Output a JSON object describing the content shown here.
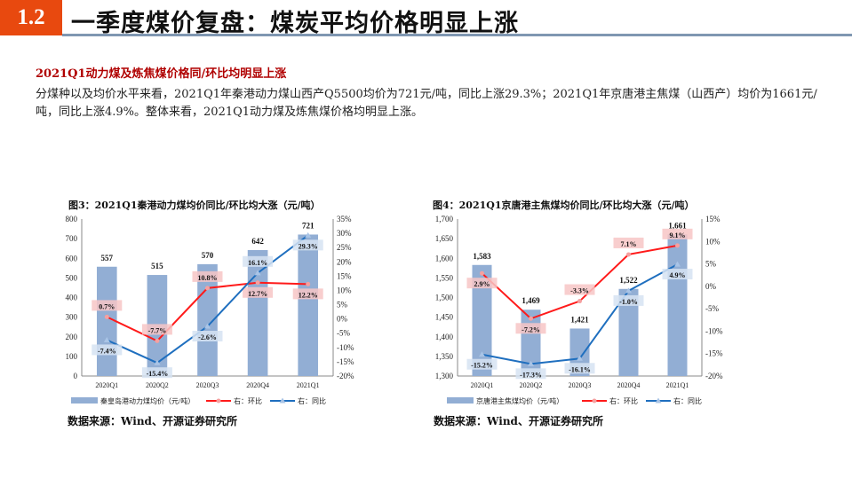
{
  "header": {
    "section_number": "1.2",
    "title": "一季度煤价复盘：煤炭平均价格明显上涨"
  },
  "subhead": "2021Q1动力煤及炼焦煤价格同/环比均明显上涨",
  "paragraph": "分煤种以及均价水平来看，2021Q1年秦港动力煤山西产Q5500均价为721元/吨，同比上涨29.3%；2021Q1年京唐港主焦煤（山西产）均价为1661元/吨，同比上涨4.9%。整体来看，2021Q1动力煤及炼焦煤价格均明显上涨。",
  "colors": {
    "accent": "#e8490f",
    "bar": "#92aed4",
    "mom_line": "#ff1a1a",
    "yoy_line": "#1f6fbf",
    "rule": "#7f97b2"
  },
  "chart_data": [
    {
      "type": "bar+line",
      "title": "图3：2021Q1秦港动力煤均价同比/环比均大涨（元/吨）",
      "categories": [
        "2020Q1",
        "2020Q2",
        "2020Q3",
        "2020Q4",
        "2021Q1"
      ],
      "left_axis": {
        "ylim": [
          0,
          800
        ],
        "ticks": [
          "0",
          "100",
          "200",
          "300",
          "400",
          "500",
          "600",
          "700",
          "800"
        ]
      },
      "right_axis": {
        "ylim": [
          -20,
          35
        ],
        "ticks": [
          "-20%",
          "-15%",
          "-10%",
          "-5%",
          "0%",
          "5%",
          "10%",
          "15%",
          "20%",
          "25%",
          "30%",
          "35%"
        ]
      },
      "series": [
        {
          "name": "秦皇岛港动力煤均价（元/吨）",
          "type": "bar",
          "axis": "left",
          "values": [
            557,
            515,
            570,
            642,
            721
          ],
          "labels": [
            "557",
            "515",
            "570",
            "642",
            "721"
          ]
        },
        {
          "name": "右：环比",
          "type": "line",
          "axis": "right",
          "values": [
            0.7,
            -7.7,
            10.8,
            12.7,
            12.2
          ],
          "labels": [
            "0.7%",
            "-7.7%",
            "10.8%",
            "12.7%",
            "12.2%"
          ]
        },
        {
          "name": "右：同比",
          "type": "line",
          "axis": "right",
          "values": [
            -7.4,
            -15.4,
            -2.6,
            16.1,
            29.3
          ],
          "labels": [
            "-7.4%",
            "-15.4%",
            "-2.6%",
            "16.1%",
            "29.3%"
          ]
        }
      ],
      "legend": "bottom",
      "source": "数据来源：Wind、开源证券研究所"
    },
    {
      "type": "bar+line",
      "title": "图4：2021Q1京唐港主焦煤均价同比/环比均大涨（元/吨）",
      "categories": [
        "2020Q1",
        "2020Q2",
        "2020Q3",
        "2020Q4",
        "2021Q1"
      ],
      "left_axis": {
        "ylim": [
          1300,
          1700
        ],
        "ticks": [
          "1,300",
          "1,350",
          "1,400",
          "1,450",
          "1,500",
          "1,550",
          "1,600",
          "1,650",
          "1,700"
        ]
      },
      "right_axis": {
        "ylim": [
          -20,
          15
        ],
        "ticks": [
          "-20%",
          "-15%",
          "-10%",
          "-5%",
          "0%",
          "5%",
          "10%",
          "15%"
        ]
      },
      "series": [
        {
          "name": "京唐港主焦煤均价（元/吨）",
          "type": "bar",
          "axis": "left",
          "values": [
            1583,
            1469,
            1421,
            1522,
            1661
          ],
          "labels": [
            "1,583",
            "1,469",
            "1,421",
            "1,522",
            "1,661"
          ]
        },
        {
          "name": "右：环比",
          "type": "line",
          "axis": "right",
          "values": [
            2.9,
            -7.2,
            -3.3,
            7.1,
            9.1
          ],
          "labels": [
            "2.9%",
            "-7.2%",
            "-3.3%",
            "7.1%",
            "9.1%"
          ]
        },
        {
          "name": "右：同比",
          "type": "line",
          "axis": "right",
          "values": [
            -15.2,
            -17.3,
            -16.1,
            -1.0,
            4.9
          ],
          "labels": [
            "-15.2%",
            "-17.3%",
            "-16.1%",
            "-1.0%",
            "4.9%"
          ]
        }
      ],
      "legend": "bottom",
      "source": "数据来源：Wind、开源证券研究所"
    }
  ]
}
